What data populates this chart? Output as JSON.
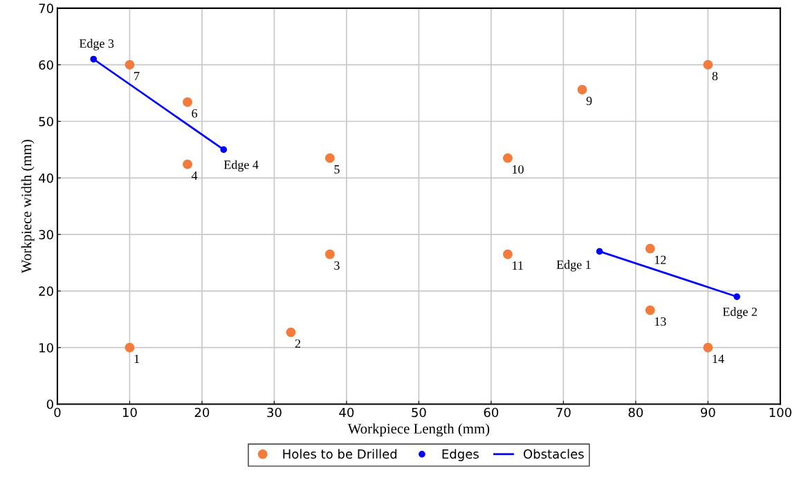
{
  "chart_data": {
    "type": "scatter",
    "xlabel": "Workpiece Length (mm)",
    "ylabel": "Workpiece width (mm)",
    "xlim": [
      0,
      100
    ],
    "ylim": [
      0,
      70
    ],
    "xticks": [
      0,
      10,
      20,
      30,
      40,
      50,
      60,
      70,
      80,
      90,
      100
    ],
    "yticks": [
      0,
      10,
      20,
      30,
      40,
      50,
      60,
      70
    ],
    "grid": true,
    "legend": "bottom",
    "marker": "circle",
    "series": [
      {
        "name": "Holes to be Drilled",
        "color": "#f47b3c",
        "x": [
          10,
          32.3,
          37.7,
          18,
          37.7,
          18,
          10,
          90,
          72.6,
          62.3,
          62.3,
          82,
          82,
          90
        ],
        "values": [
          10,
          12.7,
          26.5,
          42.4,
          43.5,
          53.4,
          60,
          60,
          55.6,
          43.5,
          26.5,
          27.5,
          16.6,
          10
        ]
      },
      {
        "name": "Edges",
        "color": "#0000ff",
        "x": [
          75,
          94,
          5,
          23
        ],
        "values": [
          27,
          19,
          61,
          45
        ]
      },
      {
        "name": "Obstacles",
        "type": "line",
        "color": "#0000ff",
        "marker": "none",
        "line_style": "solid",
        "x": [
          5,
          23,
          null,
          75,
          94
        ],
        "values": [
          61,
          45,
          null,
          27,
          19
        ]
      }
    ],
    "annotations": [
      {
        "text": "1",
        "x": 10,
        "y": 10
      },
      {
        "text": "2",
        "x": 32.3,
        "y": 12.7
      },
      {
        "text": "3",
        "x": 37.7,
        "y": 26.5
      },
      {
        "text": "4",
        "x": 18,
        "y": 42.4
      },
      {
        "text": "5",
        "x": 37.7,
        "y": 43.5
      },
      {
        "text": "6",
        "x": 18,
        "y": 53.4
      },
      {
        "text": "7",
        "x": 10,
        "y": 60
      },
      {
        "text": "8",
        "x": 90,
        "y": 60
      },
      {
        "text": "9",
        "x": 72.6,
        "y": 55.6
      },
      {
        "text": "10",
        "x": 62.3,
        "y": 43.5
      },
      {
        "text": "11",
        "x": 62.3,
        "y": 26.5
      },
      {
        "text": "12",
        "x": 82,
        "y": 27.5
      },
      {
        "text": "13",
        "x": 82,
        "y": 16.6
      },
      {
        "text": "14",
        "x": 90,
        "y": 10
      },
      {
        "text": "Edge 1",
        "x": 75,
        "y": 27
      },
      {
        "text": "Edge 2",
        "x": 94,
        "y": 19
      },
      {
        "text": "Edge 3",
        "x": 5,
        "y": 61
      },
      {
        "text": "Edge 4",
        "x": 23,
        "y": 45
      }
    ]
  }
}
